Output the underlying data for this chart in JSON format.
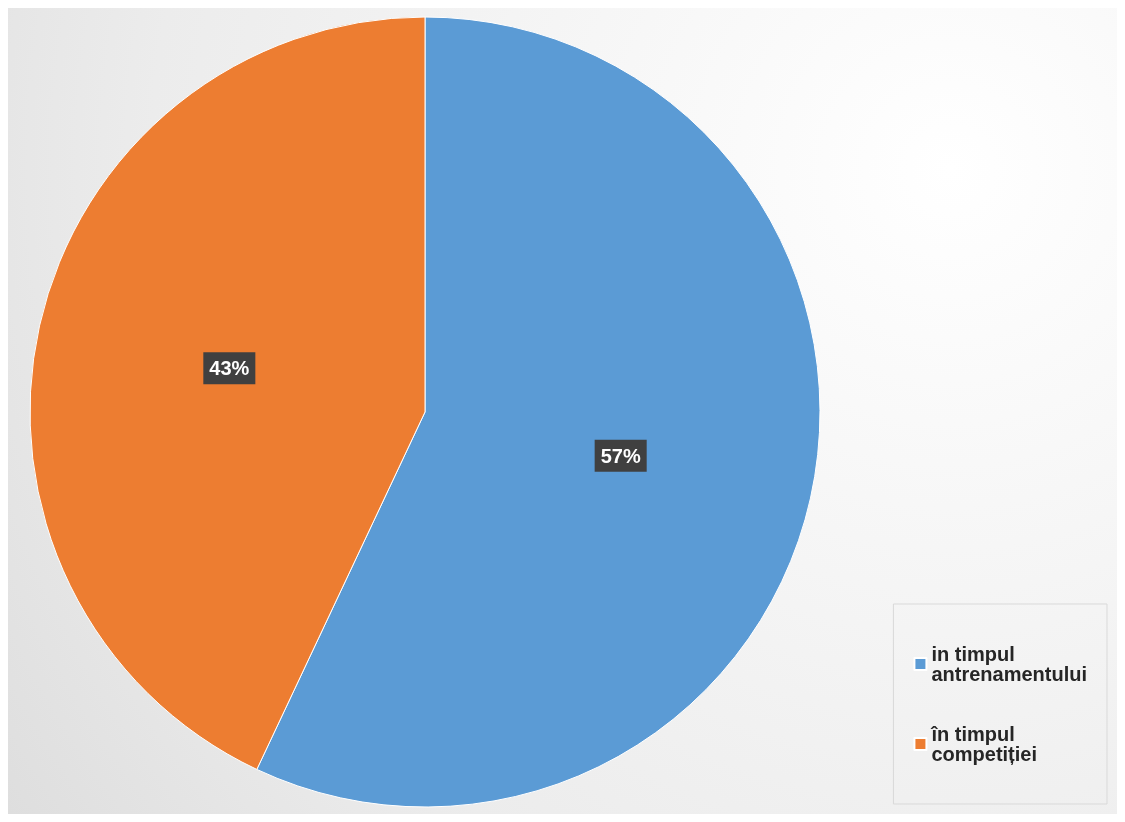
{
  "chart_data": {
    "type": "pie",
    "categories": [
      "in timpul antrenamentului",
      "în timpul competiției"
    ],
    "values": [
      57,
      43
    ],
    "colors": [
      "#5b9bd5",
      "#ed7d31"
    ],
    "value_labels": [
      "57%",
      "43%"
    ],
    "legend": "bottom right"
  }
}
